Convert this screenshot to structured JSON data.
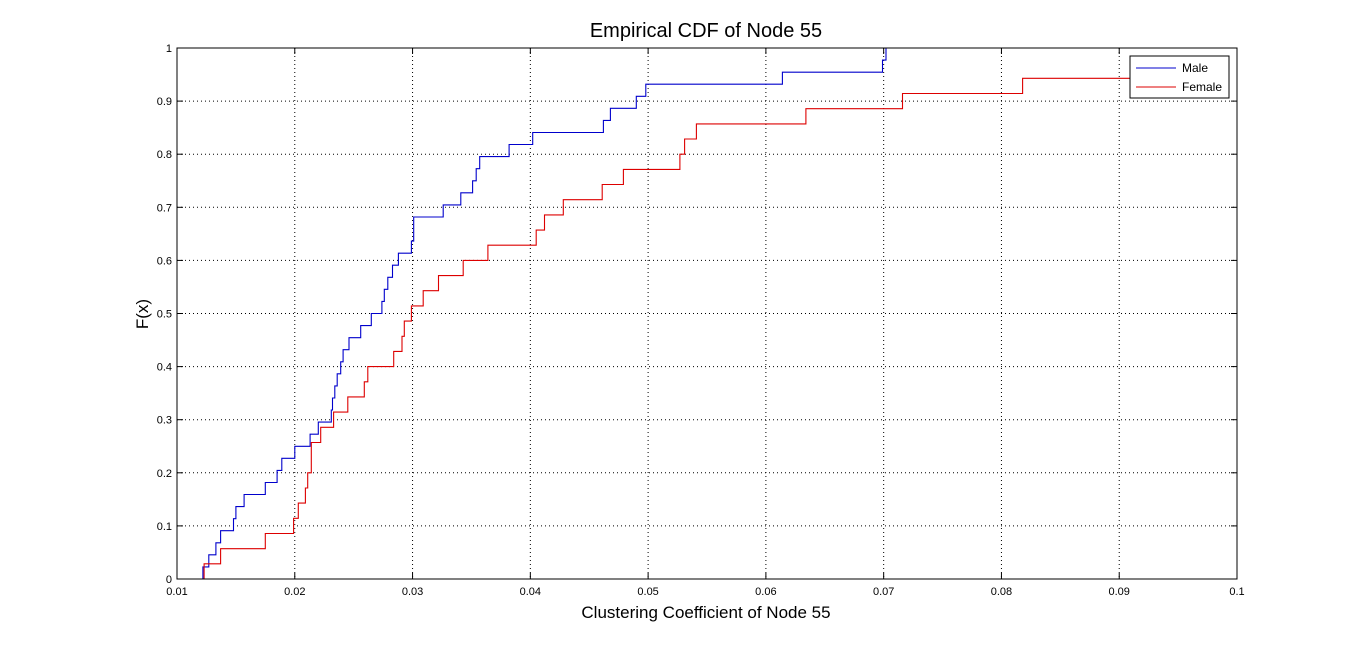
{
  "chart_data": {
    "type": "line",
    "title": "Empirical CDF of Node 55",
    "xlabel": "Clustering Coefficient of Node 55",
    "ylabel": "F(x)",
    "xlim": [
      0.01,
      0.1
    ],
    "ylim": [
      0,
      1
    ],
    "xticks": [
      "0.01",
      "0.02",
      "0.03",
      "0.04",
      "0.05",
      "0.06",
      "0.07",
      "0.08",
      "0.09",
      "0.1"
    ],
    "xtick_values": [
      0.01,
      0.02,
      0.03,
      0.04,
      0.05,
      0.06,
      0.07,
      0.08,
      0.09,
      0.1
    ],
    "yticks": [
      "0",
      "0.1",
      "0.2",
      "0.3",
      "0.4",
      "0.5",
      "0.6",
      "0.7",
      "0.8",
      "0.9",
      "1"
    ],
    "ytick_values": [
      0,
      0.1,
      0.2,
      0.3,
      0.4,
      0.5,
      0.6,
      0.7,
      0.8,
      0.9,
      1
    ],
    "grid": true,
    "legend_position": "top-right",
    "series": [
      {
        "name": "Male",
        "color": "#0000cc",
        "step": true,
        "x": [
          0.0119,
          0.0122,
          0.0127,
          0.0133,
          0.0137,
          0.014,
          0.0148,
          0.015,
          0.0157,
          0.0168,
          0.0175,
          0.0184,
          0.0185,
          0.0189,
          0.02,
          0.0213,
          0.0216,
          0.022,
          0.0221,
          0.0231,
          0.0232,
          0.0234,
          0.0236,
          0.0239,
          0.0241,
          0.0246,
          0.0256,
          0.0265,
          0.0274,
          0.0276,
          0.0279,
          0.0283,
          0.0286,
          0.0288,
          0.0299,
          0.0301,
          0.0326,
          0.0341,
          0.0346,
          0.0351,
          0.0354,
          0.0357,
          0.0363,
          0.0382,
          0.0402,
          0.0462,
          0.0464,
          0.0468,
          0.0482,
          0.049,
          0.0498,
          0.0614,
          0.0699,
          0.0702,
          0.0712
        ],
        "y": [
          0,
          0.0227,
          0.0455,
          0.0682,
          0.0909,
          0.0909,
          0.1136,
          0.1364,
          0.1591,
          0.1591,
          0.1818,
          0.1818,
          0.2045,
          0.2273,
          0.25,
          0.2727,
          0.2727,
          0.2955,
          0.2955,
          0.3182,
          0.3409,
          0.3636,
          0.3864,
          0.4091,
          0.4318,
          0.4545,
          0.4773,
          0.5,
          0.5227,
          0.5455,
          0.5682,
          0.5909,
          0.5909,
          0.6136,
          0.6364,
          0.6818,
          0.7045,
          0.7273,
          0.7273,
          0.75,
          0.7727,
          0.7955,
          0.7955,
          0.8182,
          0.8409,
          0.8636,
          0.8636,
          0.8864,
          0.8864,
          0.9091,
          0.9318,
          0.9545,
          0.9773,
          1.0,
          1.0
        ]
      },
      {
        "name": "Female",
        "color": "#dd0000",
        "step": true,
        "x": [
          0.0111,
          0.0123,
          0.0137,
          0.0175,
          0.0196,
          0.0199,
          0.0203,
          0.0209,
          0.0211,
          0.0214,
          0.0222,
          0.0233,
          0.0242,
          0.0245,
          0.0259,
          0.0262,
          0.0284,
          0.0291,
          0.0293,
          0.0299,
          0.0303,
          0.0309,
          0.0322,
          0.0343,
          0.0364,
          0.0405,
          0.0412,
          0.0428,
          0.0461,
          0.0479,
          0.0527,
          0.0531,
          0.0541,
          0.0634,
          0.0716,
          0.0818,
          0.0923
        ],
        "y": [
          0,
          0.0286,
          0.0571,
          0.0857,
          0.0857,
          0.1143,
          0.1429,
          0.1714,
          0.2,
          0.2571,
          0.2857,
          0.3143,
          0.3143,
          0.3429,
          0.3714,
          0.4,
          0.4286,
          0.4571,
          0.4857,
          0.5143,
          0.5143,
          0.5429,
          0.5714,
          0.6,
          0.6286,
          0.6571,
          0.6857,
          0.7143,
          0.7429,
          0.7714,
          0.8,
          0.8286,
          0.8571,
          0.8857,
          0.9143,
          0.9429,
          0.9714
        ]
      }
    ]
  }
}
